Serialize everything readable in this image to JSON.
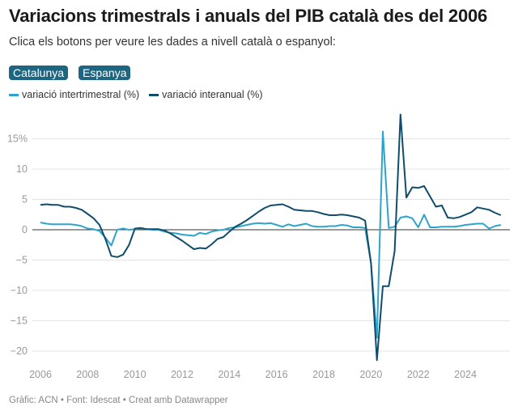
{
  "header": {
    "title": "Variacions trimestrals i anuals del PIB català des del 2006",
    "subtitle": "Clica els botons per veure les dades a nivell català o espanyol:"
  },
  "buttons": [
    "Catalunya",
    "Espanya"
  ],
  "footer": "Gràfic: ACN • Font: Idescat • Creat amb Datawrapper",
  "chart_data": {
    "type": "line",
    "title": "Variacions trimestrals i anuals del PIB català des del 2006",
    "xlabel": "",
    "ylabel": "",
    "xlim": [
      2006,
      2025.5
    ],
    "ylim": [
      -22,
      19
    ],
    "x_ticks": [
      "2006",
      "2008",
      "2010",
      "2012",
      "2014",
      "2016",
      "2018",
      "2020",
      "2022",
      "2024"
    ],
    "y_ticks": [
      {
        "v": 15,
        "label": "15%"
      },
      {
        "v": 10,
        "label": "10"
      },
      {
        "v": 5,
        "label": "5"
      },
      {
        "v": 0,
        "label": "0"
      },
      {
        "v": -5,
        "label": "−5"
      },
      {
        "v": -10,
        "label": "−10"
      },
      {
        "v": -15,
        "label": "−15"
      },
      {
        "v": -20,
        "label": "−20"
      }
    ],
    "grid": true,
    "legend": "top-left",
    "x_start": 2006,
    "x_step": 0.25,
    "series": [
      {
        "name": "variació intertrimestral (%)",
        "color": "#2ea3cc",
        "values": [
          1.2,
          1.0,
          0.9,
          0.9,
          0.9,
          0.9,
          0.8,
          0.6,
          0.2,
          0.1,
          -0.2,
          -1.3,
          -2.6,
          0.0,
          0.2,
          0.0,
          0.1,
          0.2,
          0.1,
          0.0,
          0.0,
          -0.3,
          -0.5,
          -0.6,
          -0.8,
          -0.9,
          -1.0,
          -0.5,
          -0.7,
          -0.3,
          -0.1,
          0.0,
          0.3,
          0.4,
          0.6,
          0.8,
          1.0,
          1.1,
          1.0,
          1.1,
          0.8,
          0.5,
          0.9,
          0.6,
          0.8,
          1.0,
          0.6,
          0.5,
          0.5,
          0.6,
          0.6,
          0.8,
          0.7,
          0.4,
          0.4,
          0.3,
          -5.5,
          -17.8,
          16.2,
          0.3,
          0.5,
          2.0,
          2.2,
          1.9,
          0.4,
          2.5,
          0.4,
          0.4,
          0.5,
          0.5,
          0.5,
          0.6,
          0.8,
          0.9,
          1.0,
          1.0,
          0.2,
          0.6,
          0.8
        ]
      },
      {
        "name": "variació interanual (%)",
        "color": "#0f4d6b",
        "values": [
          4.1,
          4.2,
          4.1,
          4.1,
          3.8,
          3.8,
          3.6,
          3.3,
          2.6,
          1.9,
          0.8,
          -1.5,
          -4.3,
          -4.5,
          -4.1,
          -2.5,
          0.2,
          0.3,
          0.1,
          0.1,
          0.1,
          -0.1,
          -0.6,
          -1.2,
          -1.8,
          -2.5,
          -3.2,
          -3.0,
          -3.1,
          -2.4,
          -1.5,
          -1.2,
          -0.3,
          0.5,
          1.0,
          1.6,
          2.3,
          3.0,
          3.6,
          4.0,
          4.1,
          4.2,
          3.8,
          3.3,
          3.2,
          3.1,
          3.1,
          2.9,
          2.6,
          2.4,
          2.4,
          2.5,
          2.4,
          2.2,
          2.0,
          1.5,
          -5.5,
          -21.5,
          -9.3,
          -9.3,
          -3.5,
          19.0,
          5.3,
          7.0,
          6.9,
          7.2,
          5.5,
          3.8,
          4.0,
          2.0,
          1.9,
          2.1,
          2.5,
          2.9,
          3.7,
          3.5,
          3.3,
          2.8,
          2.4
        ]
      }
    ]
  }
}
